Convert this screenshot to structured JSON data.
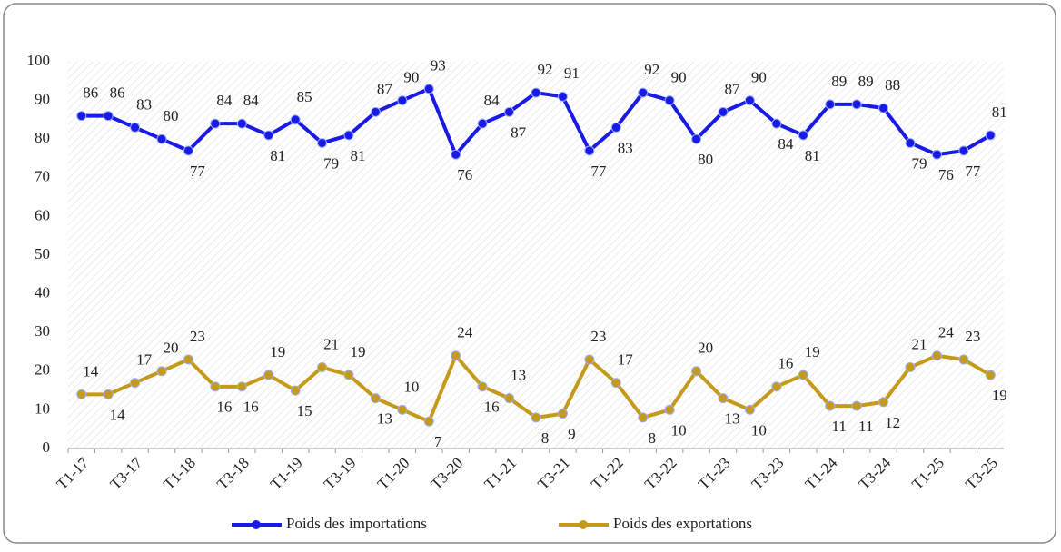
{
  "chart_data": {
    "type": "line",
    "categories": [
      "T1-17",
      null,
      "T3-17",
      null,
      "T1-18",
      null,
      "T3-18",
      null,
      "T1-19",
      null,
      "T3-19",
      null,
      "T1-20",
      null,
      "T3-20",
      null,
      "T1-21",
      null,
      "T3-21",
      null,
      "T1-22",
      null,
      "T3-22",
      null,
      "T1-23",
      null,
      "T3-23",
      null,
      "T1-24",
      null,
      "T3-24",
      null,
      "T1-25",
      null,
      "T3-25"
    ],
    "series": [
      {
        "name": "Poids des importations",
        "color": "#1a1ae6",
        "values": [
          86,
          86,
          83,
          80,
          77,
          84,
          84,
          81,
          85,
          79,
          81,
          87,
          90,
          93,
          76,
          84,
          87,
          92,
          91,
          77,
          83,
          92,
          90,
          80,
          87,
          90,
          84,
          81,
          89,
          89,
          88,
          79,
          76,
          77,
          81
        ]
      },
      {
        "name": "Poids des exportations",
        "color": "#c59a1a",
        "values": [
          14,
          14,
          17,
          20,
          23,
          16,
          16,
          19,
          15,
          21,
          19,
          13,
          10,
          7,
          24,
          16,
          13,
          8,
          9,
          23,
          17,
          8,
          10,
          20,
          13,
          10,
          16,
          19,
          11,
          11,
          12,
          21,
          24,
          23,
          19
        ]
      }
    ],
    "ylim": [
      0,
      100
    ],
    "yticks": [
      0,
      10,
      20,
      30,
      40,
      50,
      60,
      70,
      80,
      90,
      100
    ],
    "legend": "bottom"
  }
}
